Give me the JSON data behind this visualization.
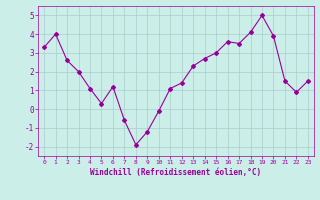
{
  "x": [
    0,
    1,
    2,
    3,
    4,
    5,
    6,
    7,
    8,
    9,
    10,
    11,
    12,
    13,
    14,
    15,
    16,
    17,
    18,
    19,
    20,
    21,
    22,
    23
  ],
  "y": [
    3.3,
    4.0,
    2.6,
    2.0,
    1.1,
    0.3,
    1.2,
    -0.6,
    -1.9,
    -1.2,
    -0.1,
    1.1,
    1.4,
    2.3,
    2.7,
    3.0,
    3.6,
    3.5,
    4.1,
    5.0,
    3.9,
    1.5,
    0.9,
    1.5
  ],
  "line_color": "#990099",
  "marker": "D",
  "marker_size": 2,
  "background_color": "#cceee8",
  "grid_color": "#aacccc",
  "xlabel": "Windchill (Refroidissement éolien,°C)",
  "xlabel_color": "#990099",
  "tick_color": "#990099",
  "ylim": [
    -2.5,
    5.5
  ],
  "yticks": [
    -2,
    -1,
    0,
    1,
    2,
    3,
    4,
    5
  ],
  "xlim": [
    -0.5,
    23.5
  ],
  "xticks": [
    0,
    1,
    2,
    3,
    4,
    5,
    6,
    7,
    8,
    9,
    10,
    11,
    12,
    13,
    14,
    15,
    16,
    17,
    18,
    19,
    20,
    21,
    22,
    23
  ]
}
